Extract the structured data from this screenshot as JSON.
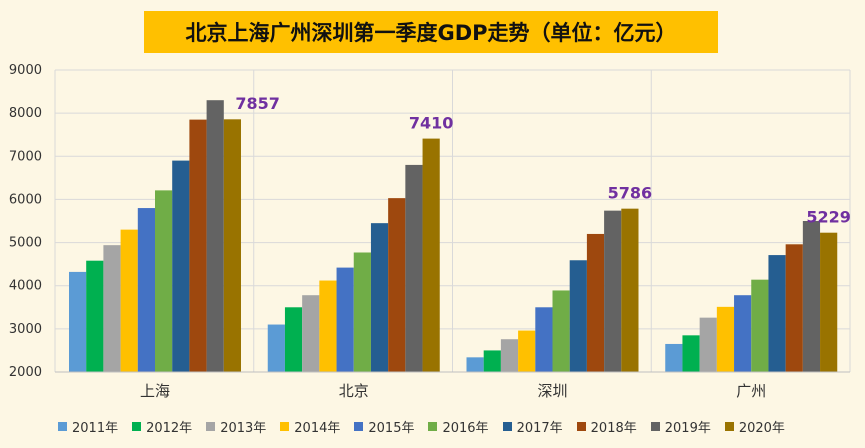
{
  "chart_data": {
    "type": "bar",
    "title": "北京上海广州深圳第一季度GDP走势（单位：亿元）",
    "categories": [
      "上海",
      "北京",
      "深圳",
      "广州"
    ],
    "ylim": [
      2000,
      9000
    ],
    "yticks": [
      2000,
      3000,
      4000,
      5000,
      6000,
      7000,
      8000,
      9000
    ],
    "grid": true,
    "legend_position": "bottom",
    "series": [
      {
        "name": "2011年",
        "color": "#5b9bd5",
        "values": [
          4320,
          3100,
          2340,
          2650
        ]
      },
      {
        "name": "2012年",
        "color": "#00b050",
        "values": [
          4580,
          3500,
          2500,
          2850
        ]
      },
      {
        "name": "2013年",
        "color": "#a5a5a5",
        "values": [
          4940,
          3780,
          2760,
          3260
        ]
      },
      {
        "name": "2014年",
        "color": "#ffc000",
        "values": [
          5300,
          4120,
          2960,
          3510
        ]
      },
      {
        "name": "2015年",
        "color": "#4472c4",
        "values": [
          5800,
          4420,
          3500,
          3780
        ]
      },
      {
        "name": "2016年",
        "color": "#70ad47",
        "values": [
          6210,
          4770,
          3890,
          4140
        ]
      },
      {
        "name": "2017年",
        "color": "#255e91",
        "values": [
          6900,
          5450,
          4590,
          4710
        ]
      },
      {
        "name": "2018年",
        "color": "#9e480e",
        "values": [
          7850,
          6030,
          5200,
          4960
        ]
      },
      {
        "name": "2019年",
        "color": "#636363",
        "values": [
          8300,
          6800,
          5740,
          5500
        ]
      },
      {
        "name": "2020年",
        "color": "#997300",
        "values": [
          7857,
          7410,
          5786,
          5229
        ]
      }
    ],
    "annotations": [
      {
        "category": "上海",
        "text": "7857"
      },
      {
        "category": "北京",
        "text": "7410"
      },
      {
        "category": "深圳",
        "text": "5786"
      },
      {
        "category": "广州",
        "text": "5229"
      }
    ],
    "annotation_color": "#7030a0"
  }
}
